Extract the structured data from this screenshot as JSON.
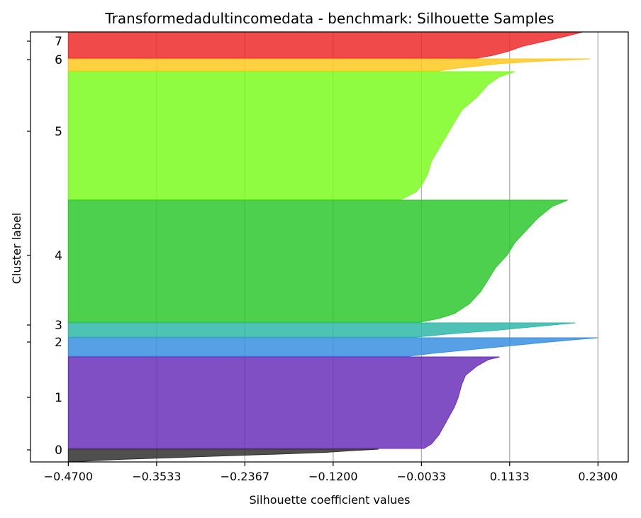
{
  "chart_data": {
    "type": "silhouette",
    "title": "Transformedadultincomedata - benchmark: Silhouette Samples",
    "xlabel": "Silhouette coefficient values",
    "ylabel": "Cluster label",
    "xlim": [
      -0.52,
      0.27
    ],
    "x_ticks": [
      -0.47,
      -0.3533,
      -0.2367,
      -0.12,
      -0.0033,
      0.1133,
      0.23
    ],
    "x_tick_labels": [
      "−0.4700",
      "−0.3533",
      "−0.2367",
      "−0.1200",
      "−0.0033",
      "0.1133",
      "0.2300"
    ],
    "grid": "vertical",
    "clusters": [
      {
        "label": "0",
        "color": "#303030",
        "max": -0.06,
        "min": -0.47,
        "profile": [
          [
            0,
            -0.06
          ],
          [
            0.1,
            -0.09
          ],
          [
            0.25,
            -0.13
          ],
          [
            0.4,
            -0.2
          ],
          [
            0.6,
            -0.3
          ],
          [
            0.8,
            -0.4
          ],
          [
            1,
            -0.47
          ]
        ]
      },
      {
        "label": "1",
        "color": "#6a30b8",
        "max": 0.1,
        "min": 0.0,
        "profile": [
          [
            0,
            0.1
          ],
          [
            0.03,
            0.085
          ],
          [
            0.1,
            0.07
          ],
          [
            0.2,
            0.055
          ],
          [
            0.3,
            0.05
          ],
          [
            0.45,
            0.045
          ],
          [
            0.55,
            0.04
          ],
          [
            0.7,
            0.03
          ],
          [
            0.85,
            0.02
          ],
          [
            0.95,
            0.01
          ],
          [
            1,
            0.0
          ]
        ]
      },
      {
        "label": "2",
        "color": "#3b8fe0",
        "max": 0.23,
        "min": -0.02,
        "profile": [
          [
            0,
            0.23
          ],
          [
            0.1,
            0.2
          ],
          [
            0.25,
            0.16
          ],
          [
            0.45,
            0.11
          ],
          [
            0.65,
            0.06
          ],
          [
            0.85,
            0.01
          ],
          [
            1,
            -0.02
          ]
        ]
      },
      {
        "label": "3",
        "color": "#2fb8a8",
        "max": 0.2,
        "min": -0.01,
        "profile": [
          [
            0,
            0.2
          ],
          [
            0.15,
            0.17
          ],
          [
            0.35,
            0.13
          ],
          [
            0.55,
            0.09
          ],
          [
            0.75,
            0.04
          ],
          [
            0.9,
            0.01
          ],
          [
            1,
            -0.01
          ]
        ]
      },
      {
        "label": "4",
        "color": "#2ec82e",
        "max": 0.19,
        "min": -0.005,
        "profile": [
          [
            0,
            0.19
          ],
          [
            0.05,
            0.17
          ],
          [
            0.15,
            0.15
          ],
          [
            0.25,
            0.135
          ],
          [
            0.35,
            0.12
          ],
          [
            0.45,
            0.11
          ],
          [
            0.55,
            0.095
          ],
          [
            0.65,
            0.085
          ],
          [
            0.75,
            0.075
          ],
          [
            0.85,
            0.06
          ],
          [
            0.93,
            0.04
          ],
          [
            0.97,
            0.02
          ],
          [
            1,
            -0.005
          ]
        ]
      },
      {
        "label": "5",
        "color": "#7cfc20",
        "max": 0.12,
        "min": -0.03,
        "profile": [
          [
            0,
            0.12
          ],
          [
            0.04,
            0.1
          ],
          [
            0.1,
            0.085
          ],
          [
            0.2,
            0.07
          ],
          [
            0.3,
            0.05
          ],
          [
            0.4,
            0.04
          ],
          [
            0.5,
            0.03
          ],
          [
            0.6,
            0.02
          ],
          [
            0.7,
            0.01
          ],
          [
            0.8,
            0.005
          ],
          [
            0.88,
            -0.002
          ],
          [
            0.94,
            -0.01
          ],
          [
            1,
            -0.03
          ]
        ]
      },
      {
        "label": "6",
        "color": "#ffc820",
        "max": 0.22,
        "min": 0.02,
        "profile": [
          [
            0,
            0.22
          ],
          [
            0.2,
            0.15
          ],
          [
            0.4,
            0.1
          ],
          [
            0.6,
            0.07
          ],
          [
            0.8,
            0.04
          ],
          [
            1,
            0.02
          ]
        ]
      },
      {
        "label": "7",
        "color": "#ee2a2a",
        "max": 0.21,
        "min": 0.07,
        "profile": [
          [
            0,
            0.21
          ],
          [
            0.15,
            0.19
          ],
          [
            0.35,
            0.16
          ],
          [
            0.55,
            0.13
          ],
          [
            0.75,
            0.11
          ],
          [
            0.9,
            0.09
          ],
          [
            1,
            0.07
          ]
        ]
      }
    ]
  },
  "colors": {
    "axis": "#000000",
    "grid": "#b0b0b0",
    "background": "#ffffff"
  }
}
